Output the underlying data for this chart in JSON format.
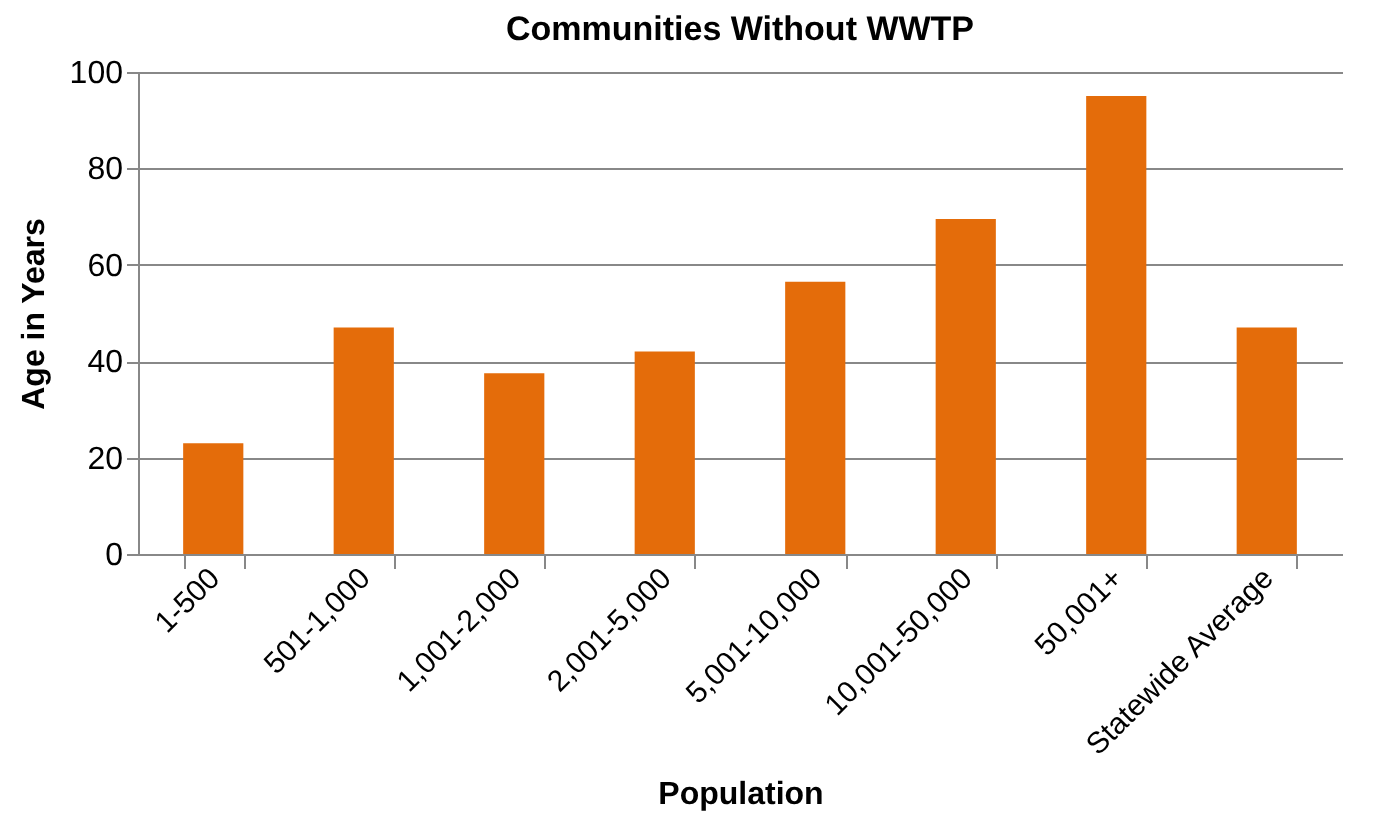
{
  "chart_data": {
    "type": "bar",
    "title": "Communities Without WWTP",
    "xlabel": "Population",
    "ylabel": "Age in Years",
    "categories": [
      "1-500",
      "501-1,000",
      "1,001-2,000",
      "2,001-5,000",
      "5,001-10,000",
      "10,001-50,000",
      "50,001+",
      "Statewide Average"
    ],
    "values": [
      23,
      47,
      37.5,
      42,
      56.5,
      69.5,
      95,
      47
    ],
    "color": "#e46c0a",
    "ylim": [
      0,
      100
    ],
    "yticks": [
      0,
      20,
      40,
      60,
      80,
      100
    ],
    "grid": "y"
  }
}
